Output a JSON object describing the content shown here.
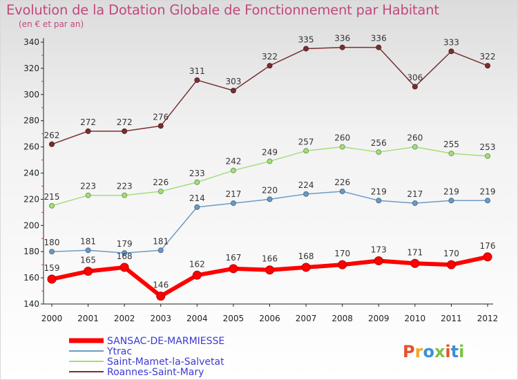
{
  "chart_data": {
    "type": "line",
    "title": "Evolution de la Dotation Globale de Fonctionnement par Habitant",
    "subtitle": "(en € et par an)",
    "categories": [
      "2000",
      "2001",
      "2002",
      "2003",
      "2004",
      "2005",
      "2006",
      "2007",
      "2008",
      "2009",
      "2010",
      "2011",
      "2012"
    ],
    "ylim": [
      140,
      340
    ],
    "yticks": [
      140,
      160,
      180,
      200,
      220,
      240,
      260,
      280,
      300,
      320,
      340
    ],
    "grid": false,
    "legend_position": "bottom-left",
    "series": [
      {
        "name": "SANSAC-DE-MARMIESSE",
        "color": "#ff0000",
        "values": [
          159,
          165,
          168,
          146,
          162,
          167,
          166,
          168,
          170,
          173,
          171,
          170,
          176
        ]
      },
      {
        "name": "Ytrac",
        "color": "#6b9ac4",
        "values": [
          180,
          181,
          179,
          181,
          214,
          217,
          220,
          224,
          226,
          219,
          217,
          219,
          219
        ]
      },
      {
        "name": "Saint-Mamet-la-Salvetat",
        "color": "#a3de7a",
        "values": [
          215,
          223,
          223,
          226,
          233,
          242,
          249,
          257,
          260,
          256,
          260,
          255,
          253
        ]
      },
      {
        "name": "Roannes-Saint-Mary",
        "color": "#7a2f2f",
        "values": [
          262,
          272,
          272,
          276,
          311,
          303,
          322,
          335,
          336,
          336,
          306,
          333,
          322
        ]
      }
    ]
  },
  "logo_text": "Proxiti",
  "logo_colors": [
    "#e94f2e",
    "#f5a623",
    "#3b8fd6",
    "#7cc142",
    "#e94f2e",
    "#3b8fd6",
    "#7cc142"
  ]
}
